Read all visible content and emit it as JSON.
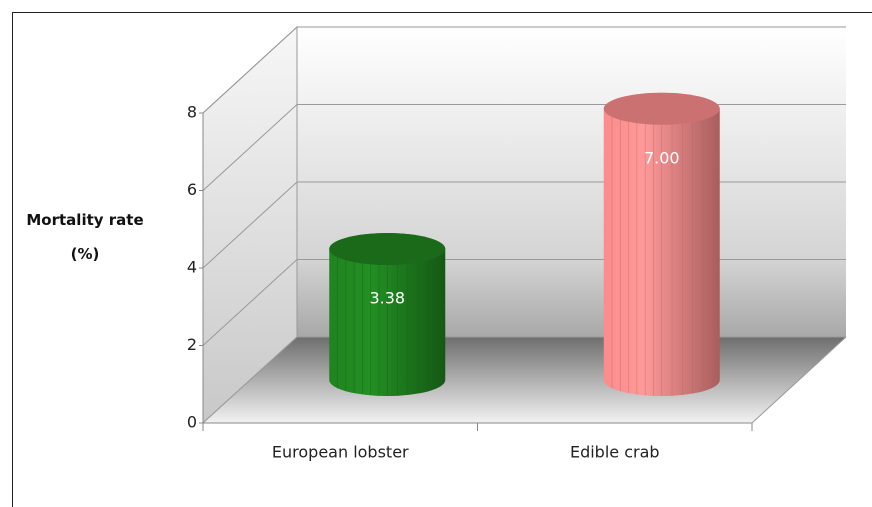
{
  "chart_data": {
    "type": "bar",
    "style": "cylinder-3d",
    "y_label": "Mortality rate (%)",
    "categories": [
      "European lobster",
      "Edible crab"
    ],
    "values": [
      3.38,
      7.0
    ],
    "value_labels": [
      "3.38",
      "7.00"
    ],
    "colors": [
      "#1e7d1e",
      "#f08585"
    ],
    "ylim": [
      0,
      8
    ],
    "yticks": [
      0,
      2,
      4,
      6,
      8
    ],
    "grid": true
  }
}
